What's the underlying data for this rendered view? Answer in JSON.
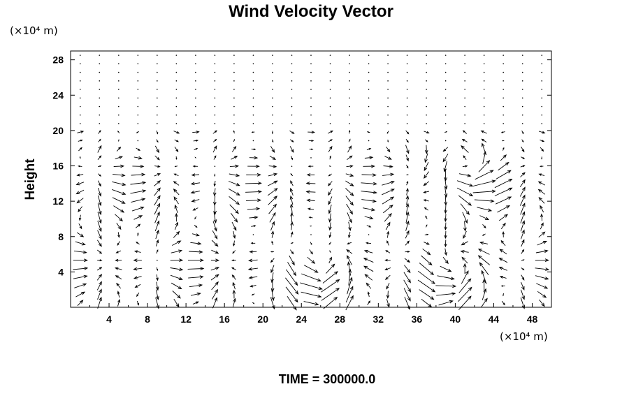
{
  "chart_data": {
    "type": "vector-field",
    "title": "Wind Velocity Vector",
    "ylabel": "Height",
    "y_unit_label": "(×10⁴ m)",
    "x_unit_label": "(×10⁴ m)",
    "xlim": [
      0,
      50
    ],
    "ylim": [
      0,
      29
    ],
    "x_ticks": [
      4,
      8,
      12,
      16,
      20,
      24,
      28,
      32,
      36,
      40,
      44,
      48
    ],
    "y_ticks": [
      4,
      8,
      12,
      16,
      20,
      24,
      28
    ],
    "grid": false,
    "caption": "TIME = 300000.0",
    "notes": "Dense wind velocity vector field; arrows are strong in the lower layer (Height < 20) with calm/near-zero vectors above Height 20. Recirculating cells near x=26 and x=40 at low levels."
  }
}
